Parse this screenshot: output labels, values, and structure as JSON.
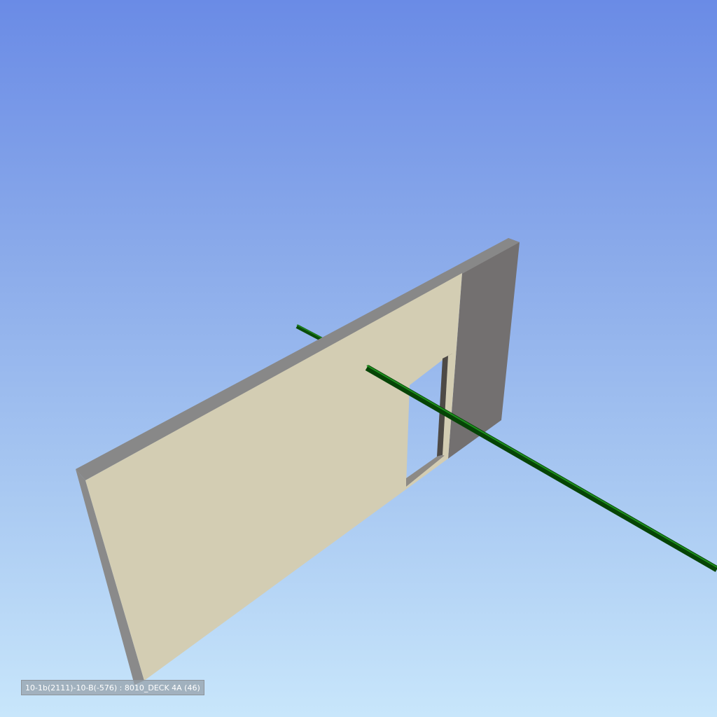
{
  "viewport": {
    "background_top": "#6a8be6",
    "background_bottom": "#c8e6fb"
  },
  "scene": {
    "wall_face_color": "#d3cdb3",
    "wall_edge_color": "#737070",
    "wall_top_color": "#888888",
    "opening_reveal_color": "#4e4a46",
    "pipe_color": "#0f6a0f"
  },
  "status": {
    "selected_object": "10-1b(2111)-10-B(-576) : 8010_DECK 4A (46)"
  }
}
